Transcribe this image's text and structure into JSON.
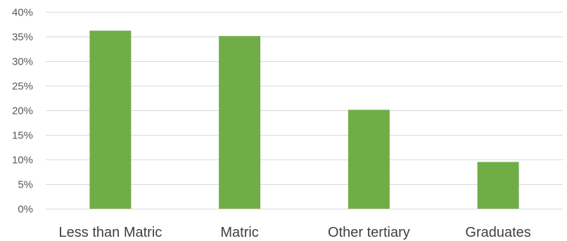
{
  "chart_data": {
    "type": "bar",
    "title": "",
    "xlabel": "",
    "ylabel": "",
    "categories": [
      "Less than Matric",
      "Matric",
      "Other tertiary",
      "Graduates"
    ],
    "values": [
      0.362,
      0.351,
      0.201,
      0.095
    ],
    "ylim": [
      0,
      0.4
    ],
    "yticks": [
      0,
      0.05,
      0.1,
      0.15,
      0.2,
      0.25,
      0.3,
      0.35,
      0.4
    ],
    "ytick_labels": [
      "0%",
      "5%",
      "10%",
      "15%",
      "20%",
      "25%",
      "30%",
      "35%",
      "40%"
    ],
    "grid": true,
    "legend": "none",
    "bar_color": "#70ad47",
    "gridline_color": "#d9d9d9"
  }
}
